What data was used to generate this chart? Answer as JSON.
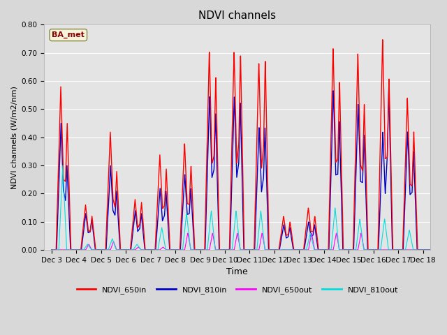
{
  "title": "NDVI channels",
  "ylabel": "NDVI channels (W/m2/nm)",
  "xlabel": "Time",
  "ylim": [
    0.0,
    0.8
  ],
  "yticks": [
    0.0,
    0.1,
    0.2,
    0.3,
    0.4,
    0.5,
    0.6,
    0.7,
    0.8
  ],
  "annotation_text": "BA_met",
  "annotation_color": "#8b0000",
  "annotation_bg": "#f5f5dc",
  "series": {
    "NDVI_650in": {
      "color": "#ff0000",
      "lw": 1.0
    },
    "NDVI_810in": {
      "color": "#0000cc",
      "lw": 1.0
    },
    "NDVI_650out": {
      "color": "#ff00ff",
      "lw": 0.8
    },
    "NDVI_810out": {
      "color": "#00dddd",
      "lw": 0.8
    }
  },
  "xtick_labels": [
    "Dec 3",
    "Dec 4",
    "Dec 5",
    "Dec 6",
    "Dec 7",
    "Dec 8",
    "Dec 9",
    "Dec 10",
    "Dec 11",
    "Dec 12",
    "Dec 13",
    "Dec 14",
    "Dec 15",
    "Dec 16",
    "Dec 17",
    "Dec 18"
  ],
  "days": 16,
  "day_peaks": {
    "650in": [
      0.58,
      0.16,
      0.42,
      0.18,
      0.34,
      0.38,
      0.71,
      0.71,
      0.67,
      0.12,
      0.15,
      0.72,
      0.7,
      0.75,
      0.54,
      0.0
    ],
    "650in2": [
      0.45,
      0.12,
      0.28,
      0.17,
      0.29,
      0.3,
      0.62,
      0.7,
      0.68,
      0.1,
      0.12,
      0.6,
      0.52,
      0.61,
      0.42,
      0.0
    ],
    "810in": [
      0.45,
      0.13,
      0.3,
      0.14,
      0.22,
      0.27,
      0.55,
      0.55,
      0.44,
      0.09,
      0.1,
      0.57,
      0.52,
      0.42,
      0.42,
      0.0
    ],
    "810in2": [
      0.3,
      0.11,
      0.21,
      0.13,
      0.21,
      0.22,
      0.49,
      0.53,
      0.44,
      0.08,
      0.09,
      0.46,
      0.41,
      0.58,
      0.35,
      0.0
    ],
    "650out": [
      0.0,
      0.02,
      0.03,
      0.01,
      0.01,
      0.06,
      0.06,
      0.06,
      0.06,
      0.0,
      0.06,
      0.06,
      0.06,
      0.0,
      0.0,
      0.0
    ],
    "810out": [
      0.3,
      0.02,
      0.04,
      0.02,
      0.08,
      0.13,
      0.14,
      0.14,
      0.14,
      0.0,
      0.06,
      0.15,
      0.11,
      0.11,
      0.07,
      0.0
    ]
  }
}
